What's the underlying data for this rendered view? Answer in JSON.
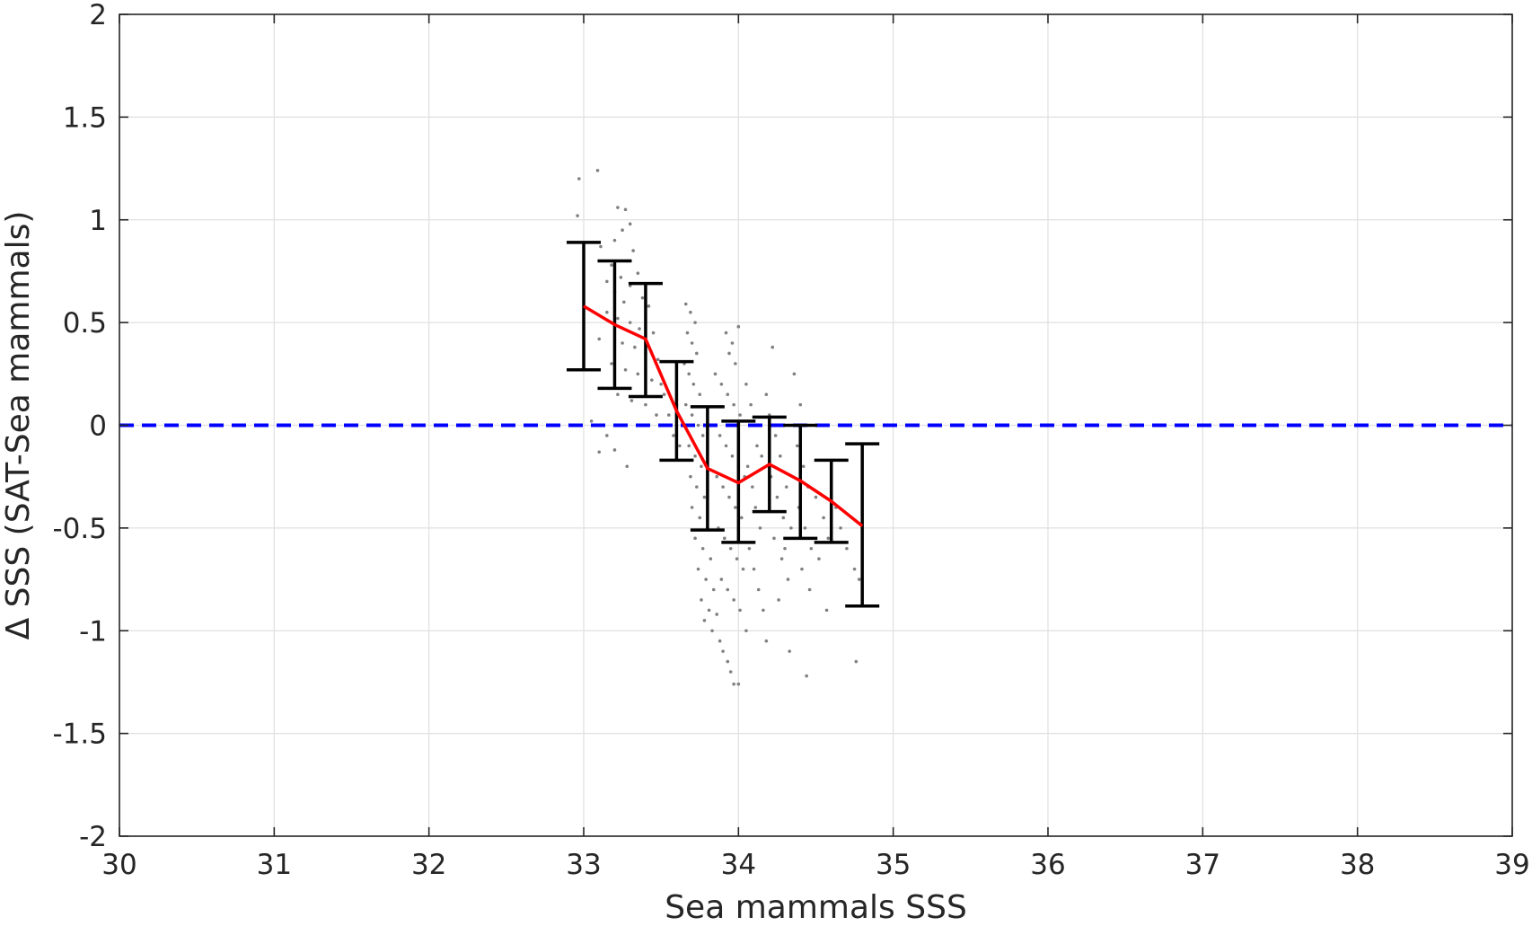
{
  "chart_data": {
    "type": "scatter",
    "xlabel": "Sea mammals SSS",
    "ylabel": "Δ SSS (SAT-Sea mammals)",
    "xlim": [
      30,
      39
    ],
    "ylim": [
      -2,
      2
    ],
    "x_ticks": [
      30,
      31,
      32,
      33,
      34,
      35,
      36,
      37,
      38,
      39
    ],
    "y_ticks": [
      -2,
      -1.5,
      -1,
      -0.5,
      0,
      0.5,
      1,
      1.5,
      2
    ],
    "x_tick_labels": [
      "30",
      "31",
      "32",
      "33",
      "34",
      "35",
      "36",
      "37",
      "38",
      "39"
    ],
    "y_tick_labels": [
      "-2",
      "-1.5",
      "-1",
      "-0.5",
      "0",
      "0.5",
      "1",
      "1.5",
      "2"
    ],
    "grid": true,
    "colors": {
      "scatter": "#808080",
      "mean_line": "#ff0000",
      "errorbar": "#000000",
      "zero_line": "#0000ff",
      "grid": "#e0e0e0",
      "axes": "#262626"
    },
    "zero_line": {
      "y": 0,
      "style": "dashed"
    },
    "binned_stats": {
      "x": [
        33.0,
        33.2,
        33.4,
        33.6,
        33.8,
        34.0,
        34.2,
        34.4,
        34.6,
        34.8
      ],
      "mean": [
        0.58,
        0.49,
        0.42,
        0.07,
        -0.21,
        -0.28,
        -0.19,
        -0.27,
        -0.37,
        -0.49
      ],
      "lower": [
        0.27,
        0.18,
        0.14,
        -0.17,
        -0.51,
        -0.57,
        -0.42,
        -0.55,
        -0.57,
        -0.88
      ],
      "upper": [
        0.89,
        0.8,
        0.69,
        0.31,
        0.09,
        0.02,
        0.04,
        0.0,
        -0.17,
        -0.09
      ]
    },
    "scatter_points": [
      [
        32.97,
        1.2
      ],
      [
        33.09,
        1.24
      ],
      [
        32.96,
        1.02
      ],
      [
        33.11,
        0.87
      ],
      [
        33.15,
        0.7
      ],
      [
        33.22,
        1.06
      ],
      [
        33.27,
        1.05
      ],
      [
        33.3,
        0.98
      ],
      [
        33.25,
        0.95
      ],
      [
        33.2,
        0.9
      ],
      [
        33.32,
        0.85
      ],
      [
        33.28,
        0.8
      ],
      [
        33.18,
        0.78
      ],
      [
        33.24,
        0.72
      ],
      [
        33.35,
        0.74
      ],
      [
        33.3,
        0.68
      ],
      [
        33.2,
        0.65
      ],
      [
        33.26,
        0.6
      ],
      [
        33.38,
        0.62
      ],
      [
        33.42,
        0.58
      ],
      [
        33.15,
        0.55
      ],
      [
        33.22,
        0.52
      ],
      [
        33.3,
        0.5
      ],
      [
        33.36,
        0.47
      ],
      [
        33.45,
        0.45
      ],
      [
        33.1,
        0.42
      ],
      [
        33.25,
        0.4
      ],
      [
        33.33,
        0.38
      ],
      [
        33.4,
        0.35
      ],
      [
        33.48,
        0.32
      ],
      [
        33.18,
        0.3
      ],
      [
        33.27,
        0.27
      ],
      [
        33.35,
        0.25
      ],
      [
        33.44,
        0.22
      ],
      [
        33.5,
        0.2
      ],
      [
        33.12,
        0.18
      ],
      [
        33.22,
        0.15
      ],
      [
        33.31,
        0.12
      ],
      [
        33.4,
        0.1
      ],
      [
        33.47,
        0.05
      ],
      [
        33.05,
        0.02
      ],
      [
        33.15,
        -0.05
      ],
      [
        33.2,
        -0.12
      ],
      [
        33.28,
        -0.2
      ],
      [
        33.1,
        -0.13
      ],
      [
        33.52,
        0.15
      ],
      [
        33.55,
        0.05
      ],
      [
        33.58,
        -0.05
      ],
      [
        33.6,
        0.1
      ],
      [
        33.62,
        -0.1
      ],
      [
        33.66,
        0.59
      ],
      [
        33.69,
        0.55
      ],
      [
        33.72,
        0.5
      ],
      [
        33.67,
        0.45
      ],
      [
        33.7,
        0.4
      ],
      [
        33.73,
        0.35
      ],
      [
        33.65,
        0.3
      ],
      [
        33.68,
        0.25
      ],
      [
        33.71,
        0.2
      ],
      [
        33.75,
        0.15
      ],
      [
        33.66,
        0.1
      ],
      [
        33.7,
        0.05
      ],
      [
        33.74,
        0.0
      ],
      [
        33.77,
        -0.05
      ],
      [
        33.68,
        -0.1
      ],
      [
        33.72,
        -0.15
      ],
      [
        33.76,
        -0.2
      ],
      [
        33.69,
        -0.25
      ],
      [
        33.73,
        -0.3
      ],
      [
        33.78,
        -0.35
      ],
      [
        33.7,
        -0.4
      ],
      [
        33.75,
        -0.45
      ],
      [
        33.8,
        -0.5
      ],
      [
        33.72,
        -0.55
      ],
      [
        33.77,
        -0.6
      ],
      [
        33.82,
        -0.65
      ],
      [
        33.74,
        -0.7
      ],
      [
        33.79,
        -0.75
      ],
      [
        33.84,
        -0.8
      ],
      [
        33.76,
        -0.85
      ],
      [
        33.81,
        -0.9
      ],
      [
        33.86,
        -0.92
      ],
      [
        33.78,
        -0.95
      ],
      [
        33.83,
        -1.0
      ],
      [
        33.88,
        -1.05
      ],
      [
        33.9,
        -1.1
      ],
      [
        33.93,
        -1.15
      ],
      [
        33.95,
        -1.2
      ],
      [
        33.97,
        -1.26
      ],
      [
        34.0,
        -1.26
      ],
      [
        33.92,
        0.45
      ],
      [
        33.96,
        0.4
      ],
      [
        34.0,
        0.48
      ],
      [
        33.94,
        0.35
      ],
      [
        33.98,
        0.3
      ],
      [
        33.85,
        0.25
      ],
      [
        33.89,
        0.2
      ],
      [
        33.93,
        0.15
      ],
      [
        33.97,
        0.1
      ],
      [
        34.01,
        0.05
      ],
      [
        33.84,
        0.0
      ],
      [
        33.88,
        -0.05
      ],
      [
        33.92,
        -0.1
      ],
      [
        33.96,
        -0.15
      ],
      [
        34.0,
        -0.2
      ],
      [
        33.86,
        -0.25
      ],
      [
        33.9,
        -0.3
      ],
      [
        33.94,
        -0.35
      ],
      [
        33.98,
        -0.4
      ],
      [
        34.02,
        -0.45
      ],
      [
        33.87,
        -0.5
      ],
      [
        33.91,
        -0.55
      ],
      [
        33.95,
        -0.6
      ],
      [
        33.99,
        -0.65
      ],
      [
        34.03,
        -0.7
      ],
      [
        33.89,
        -0.75
      ],
      [
        33.93,
        -0.8
      ],
      [
        33.97,
        -0.85
      ],
      [
        34.01,
        -0.9
      ],
      [
        34.05,
        -1.0
      ],
      [
        34.05,
        0.2
      ],
      [
        34.08,
        0.1
      ],
      [
        34.1,
        0.0
      ],
      [
        34.12,
        -0.1
      ],
      [
        34.06,
        -0.2
      ],
      [
        34.09,
        -0.3
      ],
      [
        34.11,
        -0.4
      ],
      [
        34.14,
        -0.5
      ],
      [
        34.07,
        -0.6
      ],
      [
        34.1,
        -0.7
      ],
      [
        34.13,
        -0.8
      ],
      [
        34.16,
        -0.9
      ],
      [
        34.18,
        -1.05
      ],
      [
        34.04,
        -0.25
      ],
      [
        34.15,
        -0.15
      ],
      [
        34.22,
        0.38
      ],
      [
        34.18,
        0.15
      ],
      [
        34.2,
        0.05
      ],
      [
        34.24,
        -0.05
      ],
      [
        34.27,
        -0.15
      ],
      [
        34.21,
        -0.25
      ],
      [
        34.25,
        -0.35
      ],
      [
        34.29,
        -0.45
      ],
      [
        34.23,
        -0.55
      ],
      [
        34.28,
        -0.65
      ],
      [
        34.32,
        -0.75
      ],
      [
        34.26,
        -0.85
      ],
      [
        34.3,
        -0.6
      ],
      [
        34.34,
        -0.5
      ],
      [
        34.31,
        -0.3
      ],
      [
        34.36,
        0.25
      ],
      [
        34.4,
        0.1
      ],
      [
        34.38,
        -0.1
      ],
      [
        34.42,
        -0.2
      ],
      [
        34.45,
        -0.3
      ],
      [
        34.39,
        -0.4
      ],
      [
        34.43,
        -0.5
      ],
      [
        34.47,
        -0.6
      ],
      [
        34.41,
        -0.7
      ],
      [
        34.46,
        -0.8
      ],
      [
        34.33,
        -1.1
      ],
      [
        34.44,
        -1.22
      ],
      [
        34.5,
        -0.35
      ],
      [
        34.55,
        -0.45
      ],
      [
        34.58,
        -0.55
      ],
      [
        34.52,
        -0.65
      ],
      [
        34.6,
        -0.25
      ],
      [
        34.63,
        -0.4
      ],
      [
        34.57,
        -0.9
      ],
      [
        34.66,
        -0.5
      ],
      [
        34.7,
        -0.6
      ],
      [
        34.75,
        -0.7
      ],
      [
        34.78,
        -0.75
      ],
      [
        34.8,
        0.0
      ],
      [
        34.76,
        -1.15
      ]
    ]
  }
}
